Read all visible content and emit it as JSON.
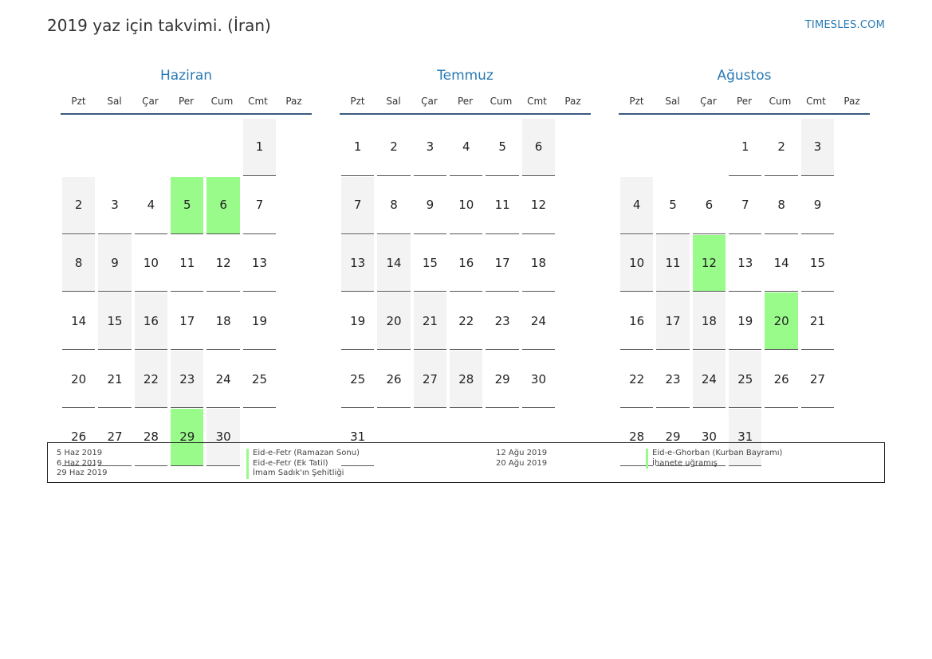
{
  "page": {
    "title": "2019 yaz için takvimi. (İran)",
    "site": "TIMESLES.COM"
  },
  "colors": {
    "accent": "#2a7ab5",
    "holiday": "#98fb8a",
    "weekend": "#f3f3f3"
  },
  "weekdays": [
    "Pzt",
    "Sal",
    "Çar",
    "Per",
    "Cum",
    "Cmt",
    "Paz"
  ],
  "months": [
    {
      "name": "Haziran",
      "start_offset": 5,
      "days": 30,
      "holidays": [
        5,
        6,
        29
      ]
    },
    {
      "name": "Temmuz",
      "start_offset": 0,
      "days": 31,
      "holidays": []
    },
    {
      "name": "Ağustos",
      "start_offset": 3,
      "days": 31,
      "holidays": [
        12,
        20
      ]
    }
  ],
  "legend": {
    "left": [
      {
        "date": "5 Haz 2019",
        "name": "Eid-e-Fetr (Ramazan Sonu)"
      },
      {
        "date": "6 Haz 2019",
        "name": "Eid-e-Fetr (Ek Tatil)"
      },
      {
        "date": "29 Haz 2019",
        "name": "İmam Sadık'ın Şehitliği"
      }
    ],
    "right": [
      {
        "date": "12 Ağu 2019",
        "name": "Eid-e-Ghorban (Kurban Bayramı)"
      },
      {
        "date": "20 Ağu 2019",
        "name": "İhanete uğramış"
      }
    ]
  }
}
